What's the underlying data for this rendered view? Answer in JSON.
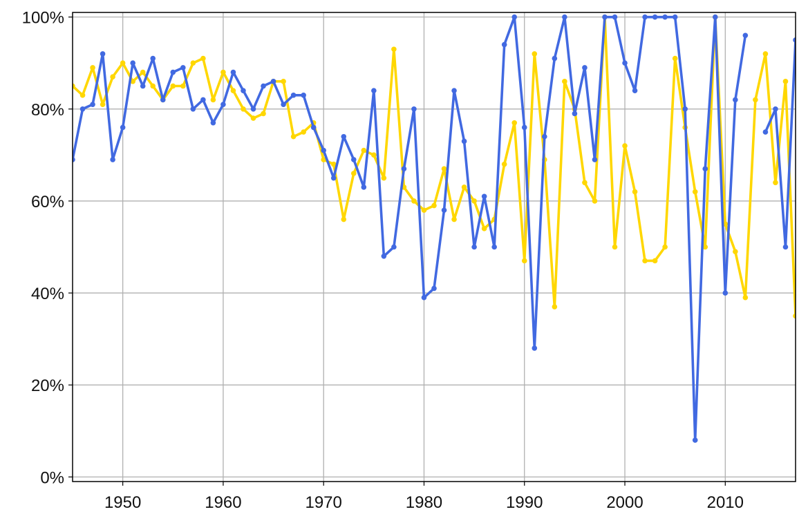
{
  "chart_data": {
    "type": "line",
    "title": "",
    "xlabel": "",
    "ylabel": "",
    "xlim": [
      1945,
      2017
    ],
    "ylim": [
      -0.01,
      1.01
    ],
    "x_ticks": [
      1950,
      1960,
      1970,
      1980,
      1990,
      2000,
      2010
    ],
    "x_tick_labels": [
      "1950",
      "1960",
      "1970",
      "1980",
      "1990",
      "2000",
      "2010"
    ],
    "y_ticks": [
      0,
      0.2,
      0.4,
      0.6,
      0.8,
      1.0
    ],
    "y_tick_labels": [
      "0%",
      "20%",
      "40%",
      "60%",
      "80%",
      "100%"
    ],
    "grid": true,
    "legend": "none",
    "series": [
      {
        "color": "#FFD700",
        "x": [
          1945,
          1946,
          1947,
          1948,
          1949,
          1950,
          1951,
          1952,
          1953,
          1954,
          1955,
          1956,
          1957,
          1958,
          1959,
          1960,
          1961,
          1962,
          1963,
          1964,
          1965,
          1966,
          1967,
          1968,
          1969,
          1970,
          1971,
          1972,
          1973,
          1974,
          1975,
          1976,
          1977,
          1978,
          1979,
          1980,
          1981,
          1982,
          1983,
          1984,
          1985,
          1986,
          1987,
          1988,
          1989,
          1990,
          1991,
          1992,
          1993,
          1994,
          1995,
          1996,
          1997,
          1998,
          1999,
          2000,
          2001,
          2002,
          2003,
          2004,
          2005,
          2006,
          2007,
          2008,
          2009,
          2010,
          2011,
          2012,
          2013,
          2014,
          2015,
          2016,
          2017
        ],
        "y": [
          0.85,
          0.83,
          0.89,
          0.81,
          0.87,
          0.9,
          0.86,
          0.88,
          0.85,
          0.82,
          0.85,
          0.85,
          0.9,
          0.91,
          0.82,
          0.88,
          0.84,
          0.8,
          0.78,
          0.79,
          0.86,
          0.86,
          0.74,
          0.75,
          0.77,
          0.69,
          0.68,
          0.56,
          0.66,
          0.71,
          0.7,
          0.65,
          0.93,
          0.63,
          0.6,
          0.58,
          0.59,
          0.67,
          0.56,
          0.63,
          0.6,
          0.54,
          0.56,
          0.68,
          0.77,
          0.47,
          0.92,
          0.69,
          0.37,
          0.86,
          0.8,
          0.64,
          0.6,
          1.0,
          0.5,
          0.72,
          0.62,
          0.47,
          0.47,
          0.5,
          0.91,
          0.76,
          0.62,
          0.5,
          1.0,
          0.55,
          0.49,
          0.39,
          0.82,
          0.92,
          0.64,
          0.86,
          0.35
        ]
      },
      {
        "color": "#4169E1",
        "x": [
          1945,
          1946,
          1947,
          1948,
          1949,
          1950,
          1951,
          1952,
          1953,
          1954,
          1955,
          1956,
          1957,
          1958,
          1959,
          1960,
          1961,
          1962,
          1963,
          1964,
          1965,
          1966,
          1967,
          1968,
          1969,
          1970,
          1971,
          1972,
          1973,
          1974,
          1975,
          1976,
          1977,
          1978,
          1979,
          1980,
          1981,
          1982,
          1983,
          1984,
          1985,
          1986,
          1987,
          1988,
          1989,
          1990,
          1991,
          1992,
          1993,
          1994,
          1995,
          1996,
          1997,
          1998,
          1999,
          2000,
          2001,
          2002,
          2003,
          2004,
          2005,
          2006,
          2007,
          2008,
          2009,
          2010,
          2011,
          2012,
          2013,
          2014,
          2015,
          2016,
          2017
        ],
        "y": [
          0.69,
          0.8,
          0.81,
          0.92,
          0.69,
          0.76,
          0.9,
          0.85,
          0.91,
          0.82,
          0.88,
          0.89,
          0.8,
          0.82,
          0.77,
          0.81,
          0.88,
          0.84,
          0.8,
          0.85,
          0.86,
          0.81,
          0.83,
          0.83,
          0.76,
          0.71,
          0.65,
          0.74,
          0.69,
          0.63,
          0.84,
          0.48,
          0.5,
          0.67,
          0.8,
          0.39,
          0.41,
          0.58,
          0.84,
          0.73,
          0.5,
          0.61,
          0.5,
          0.94,
          1.0,
          0.76,
          0.28,
          0.74,
          0.91,
          1.0,
          0.79,
          0.89,
          0.69,
          1.0,
          1.0,
          0.9,
          0.84,
          1.0,
          1.0,
          1.0,
          1.0,
          0.8,
          0.08,
          0.67,
          1.0,
          0.4,
          0.82,
          0.96,
          null,
          0.75,
          0.8,
          0.5,
          0.95
        ]
      }
    ]
  }
}
